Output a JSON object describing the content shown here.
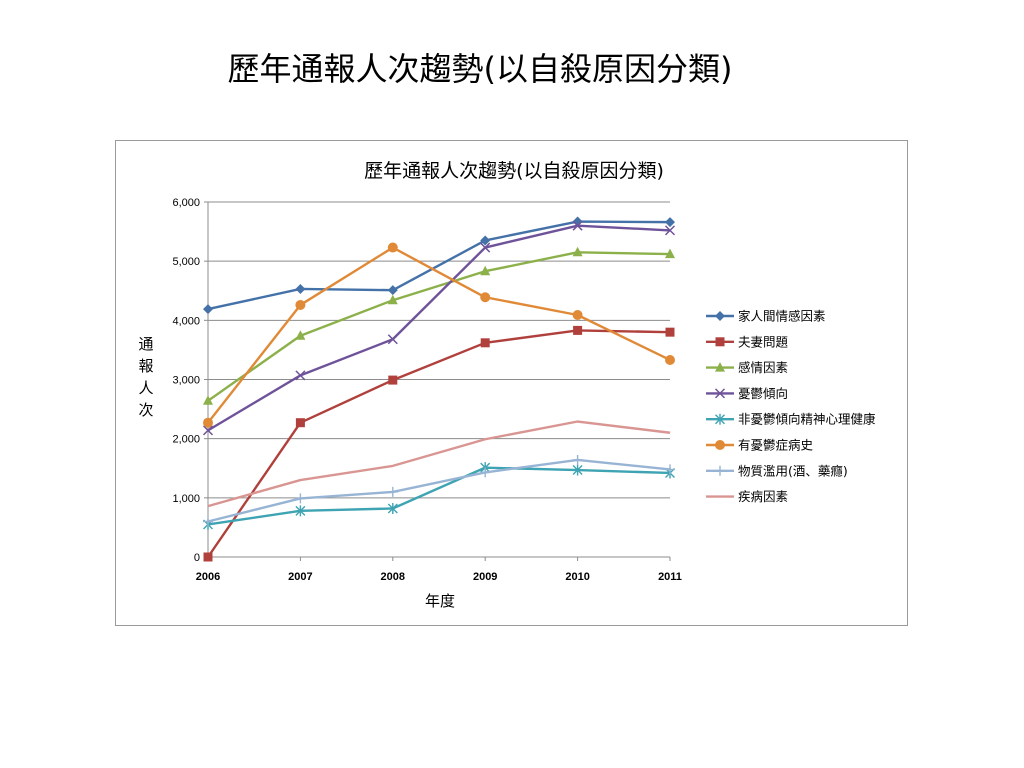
{
  "slide": {
    "title": "歷年通報人次趨勢(以自殺原因分類)"
  },
  "chart_data": {
    "type": "line",
    "title": "歷年通報人次趨勢(以自殺原因分類)",
    "xlabel": "年度",
    "ylabel": "通報人次",
    "x": [
      "2006",
      "2007",
      "2008",
      "2009",
      "2010",
      "2011"
    ],
    "ylim": [
      0,
      6000
    ],
    "yticks": [
      0,
      1000,
      2000,
      3000,
      4000,
      5000,
      6000
    ],
    "ytick_labels": [
      "0",
      "1,000",
      "2,000",
      "3,000",
      "4,000",
      "5,000",
      "6,000"
    ],
    "grid": true,
    "legend_position": "right",
    "series": [
      {
        "name": "家人間情感因素",
        "color": "#4472a8",
        "marker": "diamond",
        "values": [
          4190,
          4530,
          4510,
          5350,
          5670,
          5660
        ]
      },
      {
        "name": "夫妻問題",
        "color": "#b0403c",
        "marker": "square",
        "values": [
          0,
          2270,
          2990,
          3620,
          3830,
          3800
        ]
      },
      {
        "name": "感情因素",
        "color": "#8cb04a",
        "marker": "triangle",
        "values": [
          2640,
          3740,
          4340,
          4830,
          5150,
          5120
        ]
      },
      {
        "name": "憂鬱傾向",
        "color": "#6f539a",
        "marker": "x",
        "values": [
          2140,
          3070,
          3680,
          5230,
          5600,
          5520
        ]
      },
      {
        "name": "非憂鬱傾向精神心理健康",
        "color": "#3ea3b2",
        "marker": "star",
        "values": [
          550,
          780,
          820,
          1510,
          1470,
          1420
        ]
      },
      {
        "name": "有憂鬱症病史",
        "color": "#e08a37",
        "marker": "circle",
        "values": [
          2270,
          4260,
          5230,
          4390,
          4090,
          3330
        ]
      },
      {
        "name": "物質濫用(酒、藥癮)",
        "color": "#98b4d4",
        "marker": "plus",
        "values": [
          600,
          990,
          1100,
          1430,
          1640,
          1480
        ]
      },
      {
        "name": "疾病因素",
        "color": "#d99592",
        "marker": "none",
        "values": [
          860,
          1300,
          1540,
          1990,
          2290,
          2100
        ]
      }
    ]
  }
}
